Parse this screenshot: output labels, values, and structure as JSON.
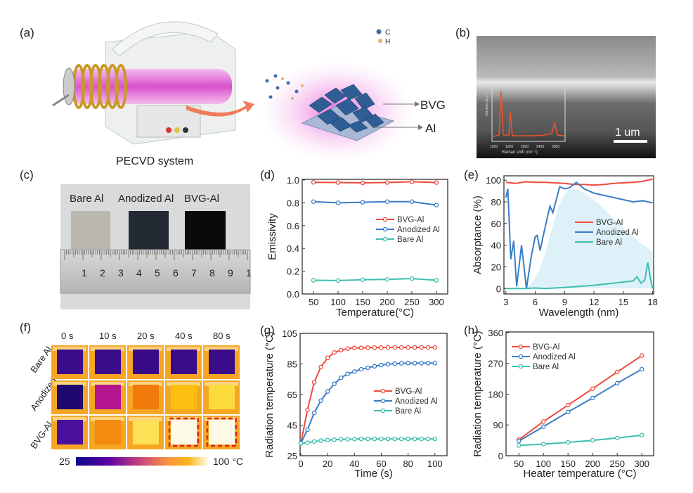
{
  "panels": {
    "a": {
      "label": "(a)",
      "caption": "PECVD system",
      "legend_c": "C",
      "legend_h": "H",
      "bvg": "BVG",
      "al": "Al"
    },
    "b": {
      "label": "(b)",
      "scale_bar": "1 um",
      "inset_ylabel": "Intensity (a.u.)",
      "inset_xlabel": "Raman shift (cm⁻¹)",
      "inset_ticks": [
        "1200",
        "1600",
        "2000",
        "2400",
        "2800"
      ]
    },
    "c": {
      "label": "(c)",
      "samples": [
        "Bare Al",
        "Anodized Al",
        "BVG-Al"
      ],
      "ruler_numbers": [
        "1",
        "2",
        "3",
        "4",
        "5",
        "6",
        "7",
        "8",
        "9",
        "1"
      ]
    },
    "d": {
      "label": "(d)"
    },
    "e": {
      "label": "(e)"
    },
    "f": {
      "label": "(f)",
      "times": [
        "0 s",
        "10 s",
        "20 s",
        "40 s",
        "80 s"
      ],
      "rows": [
        "Bare Al",
        "Anodized Al",
        "BVG-Al"
      ],
      "colorbar_min": "25",
      "colorbar_max": "100 °C",
      "cell_colors": [
        [
          "#3a0c8a",
          "#3a0c8a",
          "#380a86",
          "#3a0c8a",
          "#3a0c8a"
        ],
        [
          "#1e0a6e",
          "#b5168f",
          "#f07a0a",
          "#fcbf10",
          "#fbdc3c"
        ],
        [
          "#4a0f9c",
          "#f48a10",
          "#fce055",
          "#fdfbe8",
          "#fdfbe8"
        ]
      ],
      "highlighted": [
        [
          2,
          3
        ],
        [
          2,
          4
        ]
      ]
    },
    "g": {
      "label": "(g)"
    },
    "h": {
      "label": "(h)"
    }
  },
  "colors": {
    "bvg": "#ee4b3c",
    "anodized": "#3a7cc7",
    "bare": "#3fbfae",
    "blackbody_fill": "#d6eef8"
  },
  "chart_data": [
    {
      "id": "d",
      "type": "line",
      "xlabel": "Temperature(°C)",
      "ylabel": "Emissivity",
      "xlim": [
        27,
        323
      ],
      "ylim": [
        0,
        1.006
      ],
      "xticks": [
        50,
        100,
        150,
        200,
        250,
        300
      ],
      "yticks": [
        "0.0",
        "0.2",
        "0.4",
        "0.6",
        "0.8",
        "1.0"
      ],
      "legend": "center-right",
      "markers": true,
      "x": [
        50,
        100,
        150,
        200,
        250,
        300
      ],
      "series": [
        {
          "name": "BVG-Al",
          "values": [
            0.98,
            0.978,
            0.975,
            0.978,
            0.985,
            0.978
          ]
        },
        {
          "name": "Anodized Al",
          "values": [
            0.81,
            0.8,
            0.805,
            0.81,
            0.81,
            0.78
          ]
        },
        {
          "name": "Bare Al",
          "values": [
            0.12,
            0.118,
            0.125,
            0.128,
            0.135,
            0.12
          ]
        }
      ]
    },
    {
      "id": "e",
      "type": "line",
      "xlabel": "Wavelength (nm)",
      "ylabel": "Absorptance (%)",
      "xlim": [
        2.8,
        18.1
      ],
      "ylim": [
        -5,
        104
      ],
      "xticks": [
        3,
        6,
        9,
        12,
        15,
        18
      ],
      "yticks": [
        "0",
        "20",
        "40",
        "60",
        "80",
        "100"
      ],
      "legend": "center-right",
      "markers": false,
      "blackbody_shading": true,
      "series": [
        {
          "name": "BVG-Al",
          "points": [
            [
              3,
              98
            ],
            [
              4,
              97
            ],
            [
              5,
              98.5
            ],
            [
              6,
              98
            ],
            [
              7,
              98
            ],
            [
              8,
              97.5
            ],
            [
              9,
              97
            ],
            [
              10,
              96
            ],
            [
              11,
              96
            ],
            [
              12,
              95.5
            ],
            [
              13,
              96
            ],
            [
              14,
              97
            ],
            [
              15,
              97.5
            ],
            [
              16,
              98
            ],
            [
              17,
              99
            ],
            [
              18,
              101
            ]
          ]
        },
        {
          "name": "Anodized Al",
          "points": [
            [
              3,
              84
            ],
            [
              3.2,
              92
            ],
            [
              3.5,
              27
            ],
            [
              3.8,
              44
            ],
            [
              4.1,
              2
            ],
            [
              4.6,
              40
            ],
            [
              5.1,
              0
            ],
            [
              5.6,
              30
            ],
            [
              6,
              48
            ],
            [
              6.2,
              49
            ],
            [
              6.5,
              35
            ],
            [
              6.8,
              48
            ],
            [
              7.5,
              76
            ],
            [
              7.8,
              70
            ],
            [
              8.5,
              94
            ],
            [
              9,
              92
            ],
            [
              9.5,
              93
            ],
            [
              10.2,
              98
            ],
            [
              11,
              92
            ],
            [
              12,
              88
            ],
            [
              13,
              86
            ],
            [
              14,
              84
            ],
            [
              15,
              82
            ],
            [
              16,
              80
            ],
            [
              17,
              81
            ],
            [
              18,
              79
            ]
          ]
        },
        {
          "name": "Bare Al",
          "points": [
            [
              3,
              0
            ],
            [
              5,
              0
            ],
            [
              6,
              0.5
            ],
            [
              7,
              0
            ],
            [
              9,
              1
            ],
            [
              12,
              3
            ],
            [
              14,
              5
            ],
            [
              15,
              6
            ],
            [
              16,
              7
            ],
            [
              16.4,
              11
            ],
            [
              16.8,
              5
            ],
            [
              17.2,
              8
            ],
            [
              17.5,
              24
            ],
            [
              17.8,
              8
            ],
            [
              18,
              0
            ]
          ]
        }
      ]
    },
    {
      "id": "g",
      "type": "line",
      "xlabel": "Time (s)",
      "ylabel": "Radiation temperature (°C)",
      "xlim": [
        -0.5,
        109
      ],
      "ylim": [
        25,
        105
      ],
      "xticks": [
        0,
        20,
        40,
        60,
        80,
        100
      ],
      "yticks": [
        "25",
        "45",
        "65",
        "85",
        "105"
      ],
      "legend": "center-right",
      "markers": true,
      "x": [
        0,
        5,
        10,
        15,
        20,
        25,
        30,
        35,
        40,
        45,
        50,
        55,
        60,
        65,
        70,
        75,
        80,
        85,
        90,
        95,
        100
      ],
      "series": [
        {
          "name": "BVG-Al",
          "values": [
            33,
            55,
            73,
            83,
            89,
            92.5,
            94,
            95,
            95.5,
            95.5,
            95.7,
            95.7,
            95.7,
            95.8,
            95.8,
            95.8,
            95.8,
            95.8,
            95.8,
            95.8,
            95.8
          ]
        },
        {
          "name": "Anodized Al",
          "values": [
            33,
            42,
            53,
            61,
            67,
            72,
            76,
            78.5,
            80,
            81.5,
            82.5,
            83.5,
            84.3,
            84.8,
            85.2,
            85.4,
            85.5,
            85.5,
            85.5,
            85.5,
            85.5
          ]
        },
        {
          "name": "Bare Al",
          "values": [
            33,
            33.5,
            34.3,
            34.8,
            35.2,
            35.5,
            35.7,
            35.8,
            35.9,
            36,
            36,
            36,
            36,
            36,
            36,
            36,
            36,
            36,
            36,
            36,
            36
          ]
        }
      ]
    },
    {
      "id": "h",
      "type": "line",
      "xlabel": "Heater temperature (°C)",
      "ylabel": "Radiation temperature (°C)",
      "xlim": [
        24,
        324
      ],
      "ylim": [
        0,
        362
      ],
      "xticks": [
        50,
        100,
        150,
        200,
        250,
        300
      ],
      "yticks": [
        "0",
        "90",
        "180",
        "270",
        "360"
      ],
      "legend": "top-left",
      "markers": true,
      "x": [
        50,
        100,
        150,
        200,
        250,
        300
      ],
      "series": [
        {
          "name": "BVG-Al",
          "values": [
            47,
            100,
            148,
            196,
            245,
            293
          ]
        },
        {
          "name": "Anodized Al",
          "values": [
            43,
            85,
            128,
            169,
            212,
            253
          ]
        },
        {
          "name": "Bare Al",
          "values": [
            30,
            34,
            39,
            45,
            52,
            60
          ]
        }
      ]
    }
  ]
}
